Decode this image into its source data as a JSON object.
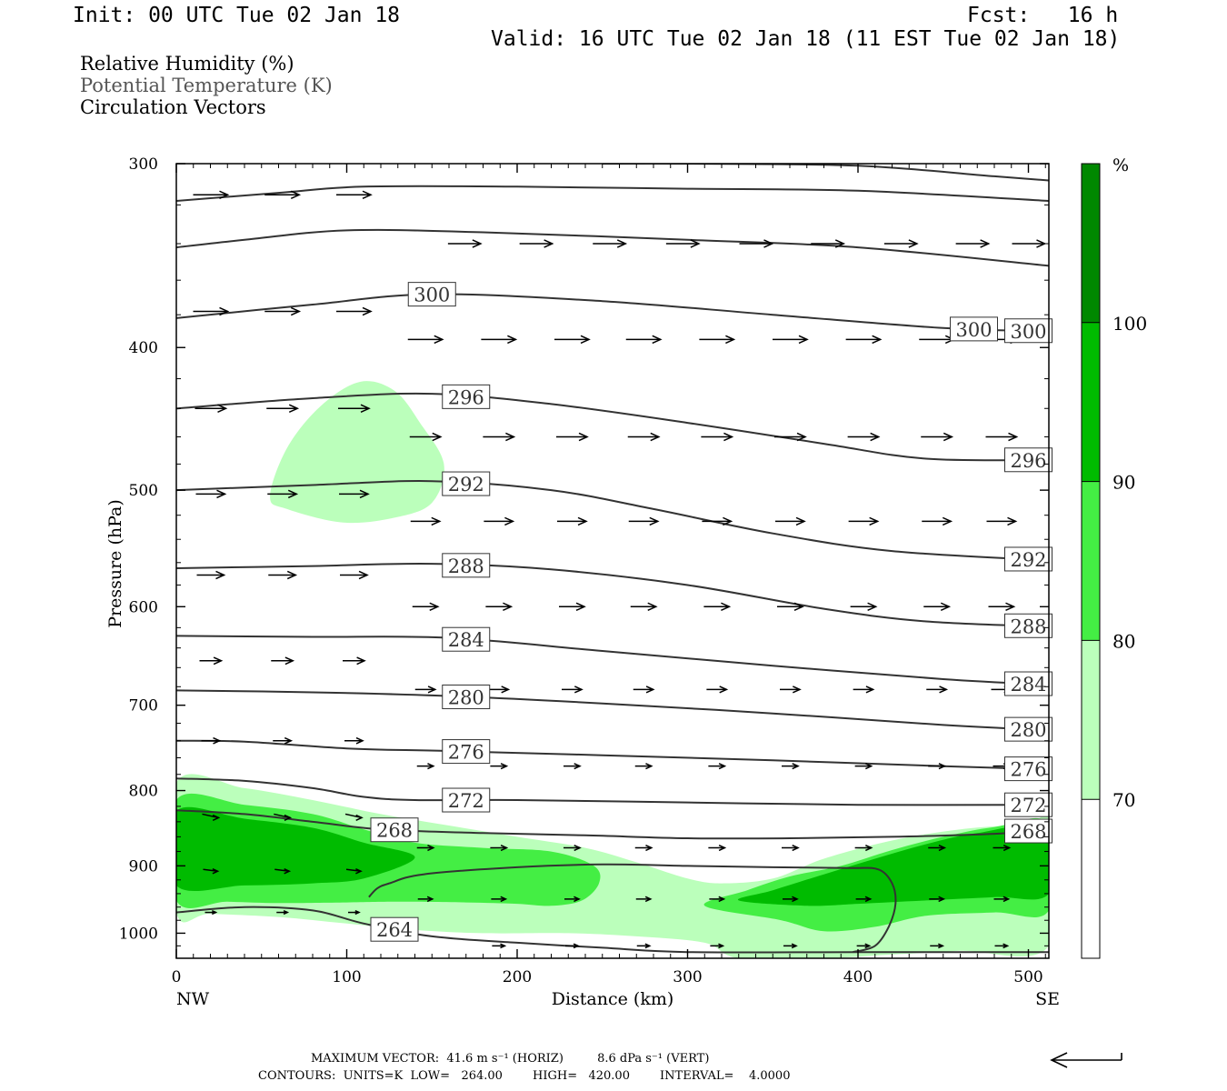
{
  "header": {
    "init": "Init: 00 UTC Tue 02 Jan 18",
    "fcst": "Fcst:   16 h",
    "valid": "Valid: 16 UTC Tue 02 Jan 18 (11 EST Tue 02 Jan 18)"
  },
  "fields": {
    "rh": "Relative Humidity (%)",
    "theta": "Potential Temperature (K)",
    "vectors": "Circulation Vectors"
  },
  "chart_data": {
    "type": "cross-section",
    "xlabel": "Distance (km)",
    "ylabel": "Pressure (hPa)",
    "xlim": [
      0,
      512
    ],
    "ylim": [
      1040,
      300
    ],
    "y_scale": "log-pressure",
    "x_ticks": [
      0,
      100,
      200,
      300,
      400,
      500
    ],
    "y_ticks": [
      300,
      400,
      500,
      600,
      700,
      800,
      900,
      1000
    ],
    "left_end": "NW",
    "right_end": "SE",
    "colorbar": {
      "unit": "%",
      "levels": [
        70,
        80,
        90,
        100
      ],
      "colors": [
        "#ffffff",
        "#bbffbb",
        "#44ee44",
        "#00bb00",
        "#008800"
      ]
    },
    "rh_regions": [
      {
        "level": 70,
        "color": "#bbffbb",
        "points": [
          [
            0,
            790
          ],
          [
            40,
            797
          ],
          [
            80,
            812
          ],
          [
            120,
            830
          ],
          [
            160,
            845
          ],
          [
            200,
            860
          ],
          [
            240,
            875
          ],
          [
            270,
            895
          ],
          [
            300,
            918
          ],
          [
            320,
            925
          ],
          [
            350,
            918
          ],
          [
            380,
            890
          ],
          [
            420,
            865
          ],
          [
            460,
            850
          ],
          [
            500,
            843
          ],
          [
            512,
            840
          ],
          [
            512,
            1020
          ],
          [
            460,
            1028
          ],
          [
            420,
            1034
          ],
          [
            380,
            1040
          ],
          [
            330,
            1040
          ],
          [
            310,
            1015
          ],
          [
            270,
            1005
          ],
          [
            230,
            1000
          ],
          [
            180,
            1000
          ],
          [
            140,
            995
          ],
          [
            100,
            985
          ],
          [
            60,
            975
          ],
          [
            20,
            970
          ],
          [
            0,
            968
          ]
        ]
      },
      {
        "level": 70,
        "color": "#bbffbb",
        "points": [
          [
            55,
            505
          ],
          [
            65,
            468
          ],
          [
            85,
            438
          ],
          [
            108,
            422
          ],
          [
            128,
            428
          ],
          [
            143,
            450
          ],
          [
            157,
            480
          ],
          [
            150,
            510
          ],
          [
            128,
            522
          ],
          [
            98,
            526
          ],
          [
            65,
            515
          ]
        ]
      },
      {
        "level": 80,
        "color": "#44ee44",
        "points": [
          [
            0,
            812
          ],
          [
            40,
            818
          ],
          [
            80,
            830
          ],
          [
            110,
            850
          ],
          [
            140,
            868
          ],
          [
            180,
            875
          ],
          [
            220,
            880
          ],
          [
            245,
            900
          ],
          [
            248,
            925
          ],
          [
            238,
            950
          ],
          [
            220,
            958
          ],
          [
            200,
            955
          ],
          [
            170,
            953
          ],
          [
            130,
            952
          ],
          [
            100,
            953
          ],
          [
            60,
            954
          ],
          [
            30,
            952
          ],
          [
            0,
            950
          ]
        ]
      },
      {
        "level": 80,
        "color": "#44ee44",
        "points": [
          [
            310,
            958
          ],
          [
            335,
            935
          ],
          [
            360,
            915
          ],
          [
            390,
            900
          ],
          [
            420,
            878
          ],
          [
            450,
            860
          ],
          [
            480,
            847
          ],
          [
            512,
            843
          ],
          [
            512,
            965
          ],
          [
            480,
            968
          ],
          [
            440,
            973
          ],
          [
            410,
            990
          ],
          [
            380,
            997
          ],
          [
            355,
            980
          ]
        ]
      },
      {
        "level": 90,
        "color": "#00bb00",
        "points": [
          [
            0,
            826
          ],
          [
            40,
            836
          ],
          [
            80,
            848
          ],
          [
            110,
            868
          ],
          [
            140,
            888
          ],
          [
            110,
            918
          ],
          [
            80,
            925
          ],
          [
            40,
            928
          ],
          [
            0,
            928
          ]
        ]
      },
      {
        "level": 90,
        "color": "#00bb00",
        "points": [
          [
            330,
            950
          ],
          [
            350,
            935
          ],
          [
            380,
            912
          ],
          [
            410,
            890
          ],
          [
            440,
            870
          ],
          [
            470,
            855
          ],
          [
            512,
            848
          ],
          [
            512,
            940
          ],
          [
            480,
            945
          ],
          [
            440,
            950
          ],
          [
            400,
            955
          ],
          [
            370,
            958
          ]
        ]
      }
    ],
    "theta_contours": [
      {
        "value": 264,
        "label_x": 128,
        "points": [
          [
            0,
            968
          ],
          [
            40,
            960
          ],
          [
            80,
            965
          ],
          [
            110,
            985
          ],
          [
            150,
            1005
          ],
          [
            200,
            1015
          ],
          [
            250,
            1023
          ],
          [
            300,
            1030
          ],
          [
            400,
            1030
          ],
          [
            512,
            1030
          ]
        ]
      },
      {
        "value": 264,
        "label_x": null,
        "points": [
          [
            113,
            945
          ],
          [
            118,
            932
          ],
          [
            125,
            925
          ],
          [
            145,
            912
          ],
          [
            200,
            902
          ],
          [
            250,
            898
          ],
          [
            300,
            900
          ],
          [
            350,
            902
          ],
          [
            395,
            903
          ],
          [
            412,
            905
          ],
          [
            420,
            925
          ],
          [
            422,
            955
          ],
          [
            418,
            990
          ],
          [
            410,
            1020
          ],
          [
            397,
            1030
          ]
        ]
      },
      {
        "value": 268,
        "label_x": 128,
        "points": [
          [
            0,
            825
          ],
          [
            40,
            830
          ],
          [
            80,
            840
          ],
          [
            120,
            850
          ],
          [
            180,
            855
          ],
          [
            240,
            858
          ],
          [
            300,
            862
          ],
          [
            360,
            862
          ],
          [
            420,
            860
          ],
          [
            480,
            856
          ],
          [
            512,
            850
          ]
        ]
      },
      {
        "value": 272,
        "label_x": 170,
        "points": [
          [
            0,
            785
          ],
          [
            40,
            788
          ],
          [
            80,
            797
          ],
          [
            110,
            808
          ],
          [
            140,
            812
          ],
          [
            200,
            812
          ],
          [
            300,
            815
          ],
          [
            400,
            818
          ],
          [
            512,
            818
          ]
        ]
      },
      {
        "value": 276,
        "label_x": 170,
        "points": [
          [
            0,
            740
          ],
          [
            40,
            741
          ],
          [
            100,
            749
          ],
          [
            160,
            752
          ],
          [
            250,
            757
          ],
          [
            350,
            763
          ],
          [
            450,
            770
          ],
          [
            512,
            774
          ]
        ]
      },
      {
        "value": 280,
        "label_x": 170,
        "points": [
          [
            0,
            684
          ],
          [
            80,
            686
          ],
          [
            160,
            690
          ],
          [
            250,
            698
          ],
          [
            350,
            709
          ],
          [
            450,
            722
          ],
          [
            512,
            728
          ]
        ]
      },
      {
        "value": 284,
        "label_x": 170,
        "points": [
          [
            0,
            628
          ],
          [
            80,
            629
          ],
          [
            160,
            630
          ],
          [
            250,
            643
          ],
          [
            350,
            658
          ],
          [
            450,
            672
          ],
          [
            512,
            678
          ]
        ]
      },
      {
        "value": 288,
        "label_x": 170,
        "points": [
          [
            0,
            565
          ],
          [
            80,
            563
          ],
          [
            150,
            561
          ],
          [
            220,
            566
          ],
          [
            300,
            580
          ],
          [
            380,
            602
          ],
          [
            440,
            614
          ],
          [
            512,
            619
          ]
        ]
      },
      {
        "value": 292,
        "label_x": 170,
        "points": [
          [
            0,
            500
          ],
          [
            80,
            496
          ],
          [
            150,
            493
          ],
          [
            220,
            500
          ],
          [
            280,
            515
          ],
          [
            350,
            535
          ],
          [
            420,
            550
          ],
          [
            512,
            558
          ]
        ]
      },
      {
        "value": 296,
        "label_x": 170,
        "points": [
          [
            0,
            440
          ],
          [
            80,
            433
          ],
          [
            150,
            430
          ],
          [
            220,
            437
          ],
          [
            300,
            450
          ],
          [
            380,
            465
          ],
          [
            440,
            476
          ],
          [
            512,
            477
          ]
        ]
      },
      {
        "value": 300,
        "label_x": 150,
        "points": [
          [
            0,
            382
          ],
          [
            80,
            374
          ],
          [
            150,
            368
          ],
          [
            250,
            372
          ],
          [
            350,
            380
          ],
          [
            450,
            388
          ],
          [
            512,
            390
          ]
        ]
      },
      {
        "value": 300,
        "label_x": 468,
        "points": []
      },
      {
        "value": 304,
        "label_x": null,
        "points": [
          [
            0,
            342
          ],
          [
            40,
            338
          ],
          [
            100,
            333
          ],
          [
            180,
            334
          ],
          [
            300,
            338
          ],
          [
            400,
            342
          ],
          [
            512,
            352
          ]
        ]
      },
      {
        "value": 308,
        "label_x": null,
        "points": [
          [
            0,
            318
          ],
          [
            60,
            314
          ],
          [
            110,
            311
          ],
          [
            200,
            311
          ],
          [
            300,
            312
          ],
          [
            400,
            313
          ],
          [
            512,
            318
          ]
        ]
      },
      {
        "value": 312,
        "label_x": null,
        "points": [
          [
            250,
            300
          ],
          [
            300,
            300
          ],
          [
            400,
            301
          ],
          [
            480,
            306
          ],
          [
            512,
            308
          ]
        ]
      }
    ],
    "vector_rows": [
      {
        "p": 315,
        "x": [
          20,
          62,
          104
        ],
        "len": 38,
        "tilt": 0
      },
      {
        "p": 340,
        "x": [
          169,
          211,
          254,
          297,
          340,
          382,
          425,
          467,
          500
        ],
        "len": 36,
        "tilt": 0
      },
      {
        "p": 378,
        "x": [
          20,
          62,
          104
        ],
        "len": 38,
        "tilt": 0
      },
      {
        "p": 395,
        "x": [
          146,
          189,
          232,
          274,
          317,
          360,
          403,
          446,
          484
        ],
        "len": 38,
        "tilt": 0
      },
      {
        "p": 440,
        "x": [
          20,
          62,
          104
        ],
        "len": 34,
        "tilt": 0
      },
      {
        "p": 460,
        "x": [
          146,
          189,
          232,
          274,
          317,
          360,
          403,
          446,
          484
        ],
        "len": 34,
        "tilt": 0
      },
      {
        "p": 503,
        "x": [
          20,
          62,
          104
        ],
        "len": 32,
        "tilt": 0
      },
      {
        "p": 525,
        "x": [
          146,
          189,
          232,
          274,
          317,
          360,
          403,
          446,
          484
        ],
        "len": 32,
        "tilt": 0
      },
      {
        "p": 571,
        "x": [
          20,
          62,
          104
        ],
        "len": 30,
        "tilt": 0
      },
      {
        "p": 600,
        "x": [
          146,
          189,
          232,
          274,
          317,
          360,
          403,
          446,
          484
        ],
        "len": 28,
        "tilt": 0
      },
      {
        "p": 653,
        "x": [
          20,
          62,
          104
        ],
        "len": 24,
        "tilt": 0
      },
      {
        "p": 683,
        "x": [
          146,
          189,
          232,
          274,
          317,
          360,
          403,
          446,
          484
        ],
        "len": 22,
        "tilt": 0
      },
      {
        "p": 740,
        "x": [
          20,
          62,
          104
        ],
        "len": 20,
        "tilt": 0
      },
      {
        "p": 770,
        "x": [
          146,
          189,
          232,
          274,
          317,
          360,
          403,
          446,
          484
        ],
        "len": 18,
        "tilt": 0
      },
      {
        "p": 830,
        "x": [
          20,
          62,
          104
        ],
        "len": 18,
        "tilt": 4
      },
      {
        "p": 875,
        "x": [
          146,
          189,
          232,
          274,
          317,
          360,
          403,
          446,
          484
        ],
        "len": 18,
        "tilt": 0
      },
      {
        "p": 905,
        "x": [
          20,
          62,
          104
        ],
        "len": 16,
        "tilt": 2
      },
      {
        "p": 948,
        "x": [
          146,
          189,
          232,
          274,
          317,
          360,
          403,
          446,
          484
        ],
        "len": 16,
        "tilt": 0
      },
      {
        "p": 968,
        "x": [
          20,
          62,
          104
        ],
        "len": 12,
        "tilt": 0
      },
      {
        "p": 1020,
        "x": [
          189,
          232,
          274,
          317,
          360,
          403,
          446,
          484
        ],
        "len": 14,
        "tilt": 0
      }
    ]
  },
  "footer": {
    "max_vector": "MAXIMUM VECTOR:  41.6 m s⁻¹ (HORIZ)         8.6 dPa s⁻¹ (VERT)",
    "contours": "CONTOURS:  UNITS=K  LOW=   264.00        HIGH=   420.00        INTERVAL=    4.0000"
  }
}
